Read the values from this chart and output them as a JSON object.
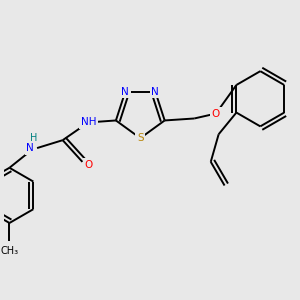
{
  "background_color": "#e8e8e8",
  "atom_colors": {
    "C": "#000000",
    "N": "#0000ff",
    "O": "#ff0000",
    "S": "#b8860b",
    "H": "#008080"
  },
  "figsize": [
    3.0,
    3.0
  ],
  "dpi": 100,
  "lw": 1.4
}
